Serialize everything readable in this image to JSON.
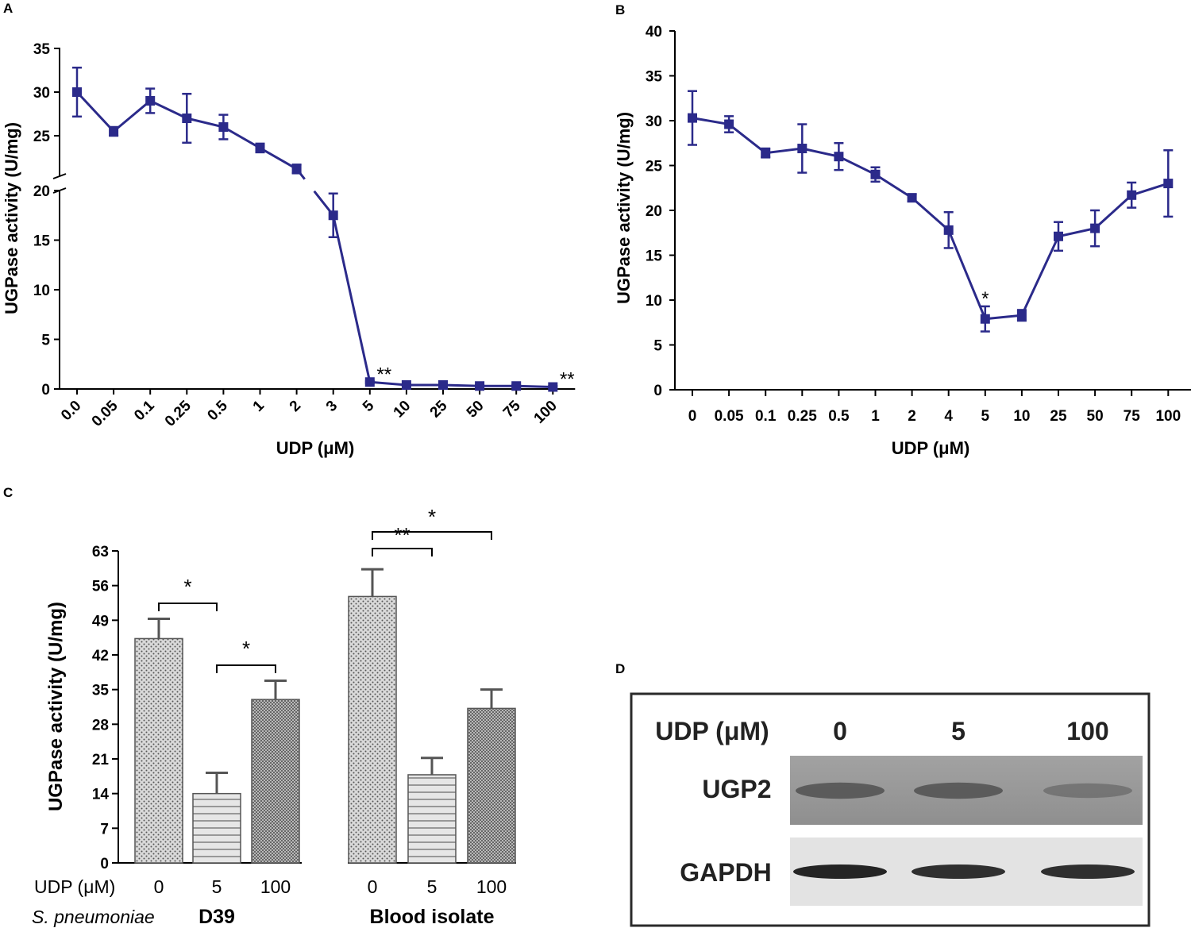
{
  "chart_data": [
    {
      "panel": "A",
      "type": "line",
      "categories": [
        "0.0",
        "0.05",
        "0.1",
        "0.25",
        "0.5",
        "1",
        "2",
        "3",
        "5",
        "10",
        "25",
        "50",
        "75",
        "100"
      ],
      "values": [
        30.0,
        25.5,
        29.0,
        27.0,
        26.0,
        23.6,
        21.2,
        17.5,
        0.7,
        0.4,
        0.4,
        0.3,
        0.3,
        0.2
      ],
      "errors": [
        2.8,
        0.5,
        1.4,
        2.8,
        1.4,
        0.5,
        0.5,
        2.2,
        0.1,
        0.1,
        0.1,
        0.1,
        0.1,
        0.1
      ],
      "xlabel": "UDP (μM)",
      "ylabel": "UGPase activity (U/mg)",
      "ylim": [
        0,
        35
      ],
      "axis_break": [
        20,
        25
      ],
      "yticks_lower": [
        "0",
        "5",
        "10",
        "15",
        "20"
      ],
      "yticks_upper": [
        "25",
        "30",
        "35"
      ],
      "annotations": [
        {
          "index": 8,
          "text": "**"
        },
        {
          "index": 13,
          "text": "**"
        }
      ],
      "color": "#2b2a8a"
    },
    {
      "panel": "B",
      "type": "line",
      "categories": [
        "0",
        "0.05",
        "0.1",
        "0.25",
        "0.5",
        "1",
        "2",
        "4",
        "5",
        "10",
        "25",
        "50",
        "75",
        "100"
      ],
      "values": [
        30.3,
        29.6,
        26.4,
        26.9,
        26.0,
        24.0,
        21.4,
        17.8,
        7.9,
        8.3,
        17.1,
        18.0,
        21.7,
        23.0
      ],
      "errors": [
        3.0,
        0.9,
        0.5,
        2.7,
        1.5,
        0.8,
        0.4,
        2.0,
        1.4,
        0.6,
        1.6,
        2.0,
        1.4,
        3.7
      ],
      "xlabel": "UDP (μM)",
      "ylabel": "UGPase activity (U/mg)",
      "ylim": [
        0,
        40
      ],
      "yticks": [
        "0",
        "5",
        "10",
        "15",
        "20",
        "25",
        "30",
        "35",
        "40"
      ],
      "annotations": [
        {
          "index": 8,
          "text": "*"
        }
      ],
      "color": "#2b2a8a"
    },
    {
      "panel": "C",
      "type": "bar",
      "ylabel": "UGPase activity (U/mg)",
      "ylim": [
        0,
        63
      ],
      "yticks": [
        "0",
        "7",
        "14",
        "21",
        "28",
        "35",
        "42",
        "49",
        "56",
        "63"
      ],
      "udp_label": "UDP (μM)",
      "species_label": "S. pneumoniae",
      "groups": [
        {
          "name": "D39",
          "doses": [
            "0",
            "5",
            "100"
          ],
          "values": [
            45.3,
            14.0,
            33.0
          ],
          "errors": [
            4.0,
            4.2,
            3.8
          ]
        },
        {
          "name": "Blood isolate",
          "doses": [
            "0",
            "5",
            "100"
          ],
          "values": [
            53.8,
            17.8,
            31.2
          ],
          "errors": [
            5.5,
            3.4,
            3.8
          ]
        }
      ],
      "significance": [
        {
          "from": 0,
          "to": 1,
          "text": "*"
        },
        {
          "from": 1,
          "to": 2,
          "text": "*"
        },
        {
          "from": 3,
          "to": 4,
          "text": "**"
        },
        {
          "from": 3,
          "to": 5,
          "text": "*"
        }
      ]
    }
  ],
  "panel_labels": {
    "a": "A",
    "b": "B",
    "c": "C",
    "d": "D"
  },
  "western_blot": {
    "header_label": "UDP (μM)",
    "lanes": [
      "0",
      "5",
      "100"
    ],
    "bands": [
      {
        "name": "UGP2",
        "intensity": [
          0.55,
          0.55,
          0.3
        ]
      },
      {
        "name": "GAPDH",
        "intensity": [
          0.95,
          0.9,
          0.9
        ]
      }
    ]
  }
}
